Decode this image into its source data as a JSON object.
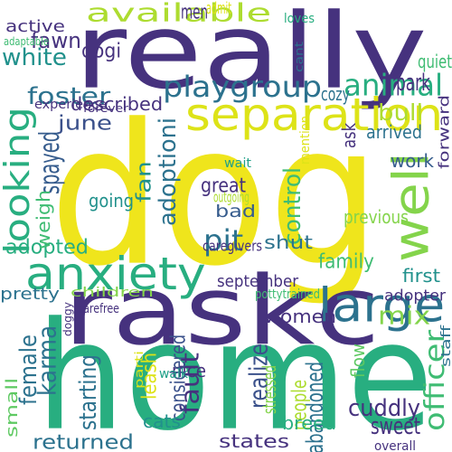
{
  "palette": {
    "purple": "#46327e",
    "indigo": "#3b518b",
    "blue": "#365c8d",
    "steel": "#2c728e",
    "teal": "#21918c",
    "sea": "#1fa088",
    "green": "#28ae80",
    "jade": "#3fbc73",
    "lime": "#5ec962",
    "yellowgreen": "#84d44b",
    "chartreuse": "#addc30",
    "yellow": "#dde318",
    "gold": "#efe51c"
  },
  "words": [
    {
      "text": "dog",
      "color": "gold"
    },
    {
      "text": "home",
      "color": "green"
    },
    {
      "text": "really",
      "color": "purple"
    },
    {
      "text": "raskc",
      "color": "purple"
    },
    {
      "text": "separation",
      "color": "yellow"
    },
    {
      "text": "anxiety",
      "color": "green"
    },
    {
      "text": "looking",
      "color": "green"
    },
    {
      "text": "large",
      "color": "steel"
    },
    {
      "text": "well",
      "color": "yellowgreen"
    },
    {
      "text": "playgroup",
      "color": "steel"
    },
    {
      "text": "available",
      "color": "chartreuse"
    },
    {
      "text": "animal",
      "color": "green"
    },
    {
      "text": "fawn",
      "color": "purple"
    },
    {
      "text": "white",
      "color": "teal"
    },
    {
      "text": "park",
      "color": "purple"
    },
    {
      "text": "foster",
      "color": "steel"
    },
    {
      "text": "bull",
      "color": "chartreuse"
    },
    {
      "text": "described",
      "color": "purple"
    },
    {
      "text": "dogi",
      "color": "purple"
    },
    {
      "text": "men",
      "color": "purple"
    },
    {
      "text": "admit",
      "color": "yellow"
    },
    {
      "text": "june",
      "color": "indigo"
    },
    {
      "text": "spayed",
      "color": "blue"
    },
    {
      "text": "female",
      "color": "steel"
    },
    {
      "text": "adoptioni",
      "color": "steel"
    },
    {
      "text": "control",
      "color": "jade"
    },
    {
      "text": "officer",
      "color": "jade"
    },
    {
      "text": "mix",
      "color": "yellowgreen"
    },
    {
      "text": "pit",
      "color": "steel"
    },
    {
      "text": "family",
      "color": "jade"
    },
    {
      "text": "adopted",
      "color": "green"
    },
    {
      "text": "karma",
      "color": "steel"
    },
    {
      "text": "abandoned",
      "color": "steel"
    },
    {
      "text": "returned",
      "color": "steel"
    },
    {
      "text": "cuddly",
      "color": "purple"
    },
    {
      "text": "sweet",
      "color": "purple"
    },
    {
      "text": "arrived",
      "color": "steel"
    },
    {
      "text": "work",
      "color": "blue"
    },
    {
      "text": "forward",
      "color": "purple"
    },
    {
      "text": "quiet",
      "color": "jade"
    },
    {
      "text": "cozy",
      "color": "steel"
    },
    {
      "text": "great",
      "color": "purple"
    },
    {
      "text": "bad",
      "color": "blue"
    },
    {
      "text": "going",
      "color": "teal"
    },
    {
      "text": "fan",
      "color": "teal"
    },
    {
      "text": "weigh",
      "color": "jade"
    },
    {
      "text": "previous",
      "color": "yellowgreen"
    },
    {
      "text": "first",
      "color": "teal"
    },
    {
      "text": "shut",
      "color": "steel"
    },
    {
      "text": "september",
      "color": "purple"
    },
    {
      "text": "pretty",
      "color": "steel"
    },
    {
      "text": "children",
      "color": "yellowgreen"
    },
    {
      "text": "women",
      "color": "purple"
    },
    {
      "text": "adopter",
      "color": "purple"
    },
    {
      "text": "fault",
      "color": "purple"
    },
    {
      "text": "nice",
      "color": "purple"
    },
    {
      "text": "realize",
      "color": "indigo"
    },
    {
      "text": "considered",
      "color": "indigo"
    },
    {
      "text": "starting",
      "color": "steel"
    },
    {
      "text": "stressed",
      "color": "yellowgreen"
    },
    {
      "text": "people",
      "color": "chartreuse"
    },
    {
      "text": "small",
      "color": "lime"
    },
    {
      "text": "cats",
      "color": "teal"
    },
    {
      "text": "states",
      "color": "purple"
    },
    {
      "text": "breed",
      "color": "green"
    },
    {
      "text": "active",
      "color": "purple"
    },
    {
      "text": "adaptable",
      "color": "jade"
    },
    {
      "text": "experience",
      "color": "purple"
    },
    {
      "text": "forever",
      "color": "purple"
    },
    {
      "text": "loves",
      "color": "green"
    },
    {
      "text": "cant",
      "color": "steel"
    },
    {
      "text": "mention",
      "color": "yellow"
    },
    {
      "text": "ask",
      "color": "purple"
    },
    {
      "text": "wait",
      "color": "sea"
    },
    {
      "text": "outgoing",
      "color": "chartreuse"
    },
    {
      "text": "caregivers",
      "color": "purple"
    },
    {
      "text": "pottytrained",
      "color": "jade"
    },
    {
      "text": "doggy",
      "color": "purple"
    },
    {
      "text": "carefree",
      "color": "purple"
    },
    {
      "text": "flow",
      "color": "lime"
    },
    {
      "text": "leash",
      "color": "yellow"
    },
    {
      "text": "walk",
      "color": "sea"
    },
    {
      "text": "staff",
      "color": "steel"
    },
    {
      "text": "parti",
      "color": "yellow"
    },
    {
      "text": "overall",
      "color": "purple"
    }
  ]
}
